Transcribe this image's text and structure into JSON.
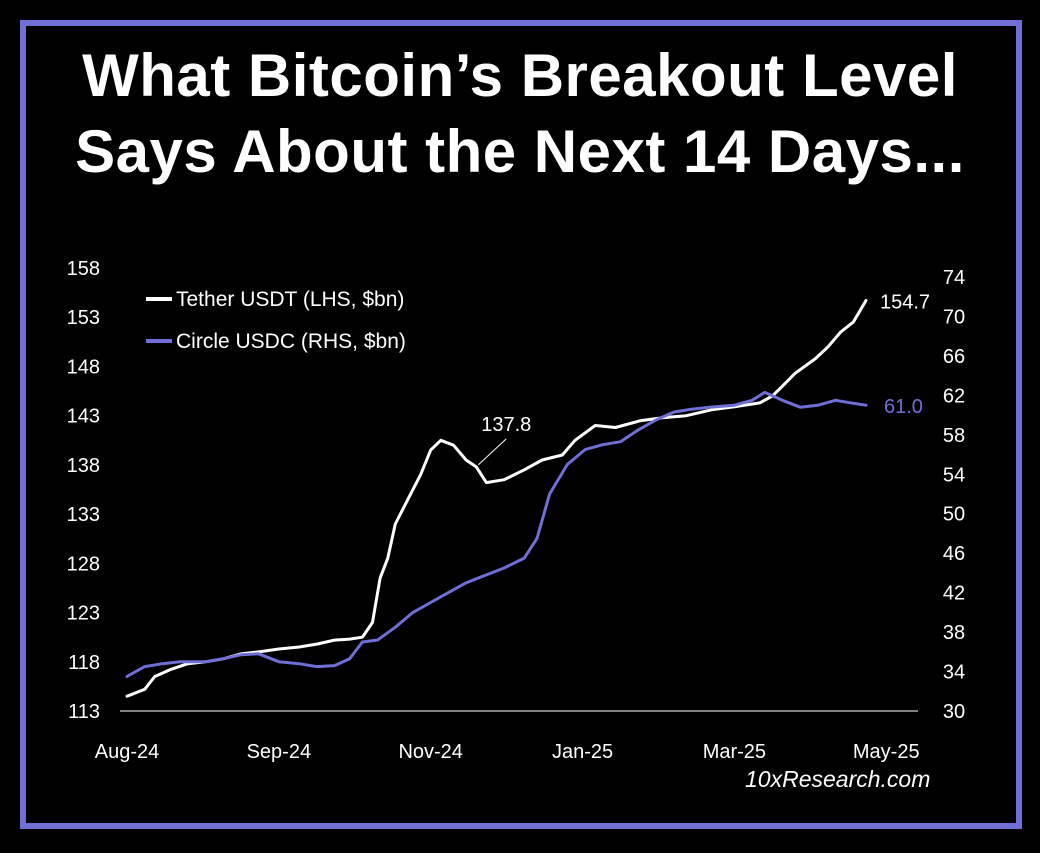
{
  "title": {
    "line1": "What Bitcoin’s Breakout Level",
    "line2": "Says About the Next 14 Days..."
  },
  "credit": "10xResearch.com",
  "colors": {
    "frame": "#6f6fd6",
    "usdt": "#ffffff",
    "usdc": "#6f6fd6",
    "background": "#000000"
  },
  "chart_data": {
    "type": "line",
    "title": "",
    "x_tick_labels": [
      "Aug-24",
      "Sep-24",
      "Nov-24",
      "Jan-25",
      "Mar-25",
      "May-25"
    ],
    "x_tick_dates": [
      "2024-08-01",
      "2024-09-30",
      "2024-11-29",
      "2025-01-28",
      "2025-03-29",
      "2025-05-28"
    ],
    "x_range": [
      "2024-08-01",
      "2025-05-20"
    ],
    "y_left": {
      "label": "",
      "range": [
        113,
        158
      ],
      "ticks": [
        158,
        153,
        148,
        143,
        138,
        133,
        128,
        123,
        118,
        113
      ]
    },
    "y_right": {
      "label": "",
      "range": [
        30,
        74
      ],
      "ticks": [
        74,
        70,
        66,
        62,
        58,
        54,
        50,
        46,
        42,
        38,
        34,
        30
      ]
    },
    "legend": {
      "placement": "top-left"
    },
    "grid": false,
    "series": [
      {
        "name": "Tether USDT (LHS, $bn)",
        "axis": "left",
        "color": "#ffffff",
        "end_label": "154.7",
        "points": [
          [
            "2024-08-01",
            114.5
          ],
          [
            "2024-08-08",
            115.2
          ],
          [
            "2024-08-12",
            116.5
          ],
          [
            "2024-08-18",
            117.2
          ],
          [
            "2024-08-25",
            117.8
          ],
          [
            "2024-09-01",
            118.0
          ],
          [
            "2024-09-08",
            118.3
          ],
          [
            "2024-09-15",
            118.8
          ],
          [
            "2024-09-22",
            119.0
          ],
          [
            "2024-09-30",
            119.3
          ],
          [
            "2024-10-08",
            119.5
          ],
          [
            "2024-10-15",
            119.8
          ],
          [
            "2024-10-22",
            120.2
          ],
          [
            "2024-10-28",
            120.3
          ],
          [
            "2024-11-02",
            120.5
          ],
          [
            "2024-11-06",
            122.0
          ],
          [
            "2024-11-09",
            126.5
          ],
          [
            "2024-11-12",
            128.5
          ],
          [
            "2024-11-15",
            132.0
          ],
          [
            "2024-11-20",
            134.5
          ],
          [
            "2024-11-25",
            137.0
          ],
          [
            "2024-11-29",
            139.5
          ],
          [
            "2024-12-03",
            140.5
          ],
          [
            "2024-12-08",
            140.0
          ],
          [
            "2024-12-13",
            138.5
          ],
          [
            "2024-12-17",
            137.8
          ],
          [
            "2024-12-21",
            136.2
          ],
          [
            "2024-12-28",
            136.5
          ],
          [
            "2025-01-05",
            137.5
          ],
          [
            "2025-01-12",
            138.5
          ],
          [
            "2025-01-20",
            139.0
          ],
          [
            "2025-01-25",
            140.5
          ],
          [
            "2025-02-02",
            142.0
          ],
          [
            "2025-02-10",
            141.8
          ],
          [
            "2025-02-20",
            142.5
          ],
          [
            "2025-03-01",
            142.8
          ],
          [
            "2025-03-10",
            143.0
          ],
          [
            "2025-03-20",
            143.6
          ],
          [
            "2025-03-29",
            143.9
          ],
          [
            "2025-04-08",
            144.3
          ],
          [
            "2025-04-13",
            145.0
          ],
          [
            "2025-04-17",
            146.0
          ],
          [
            "2025-04-22",
            147.3
          ],
          [
            "2025-04-30",
            148.8
          ],
          [
            "2025-05-05",
            150.0
          ],
          [
            "2025-05-10",
            151.5
          ],
          [
            "2025-05-15",
            152.5
          ],
          [
            "2025-05-20",
            154.7
          ]
        ]
      },
      {
        "name": "Circle USDC (RHS, $bn)",
        "axis": "right",
        "color": "#6f6fd6",
        "end_label": "61.0",
        "points": [
          [
            "2024-08-01",
            33.5
          ],
          [
            "2024-08-08",
            34.5
          ],
          [
            "2024-08-15",
            34.8
          ],
          [
            "2024-08-22",
            35.0
          ],
          [
            "2024-09-01",
            35.0
          ],
          [
            "2024-09-08",
            35.3
          ],
          [
            "2024-09-15",
            35.7
          ],
          [
            "2024-09-22",
            35.8
          ],
          [
            "2024-09-30",
            35.0
          ],
          [
            "2024-10-08",
            34.8
          ],
          [
            "2024-10-15",
            34.5
          ],
          [
            "2024-10-22",
            34.6
          ],
          [
            "2024-10-28",
            35.3
          ],
          [
            "2024-11-02",
            37.0
          ],
          [
            "2024-11-08",
            37.2
          ],
          [
            "2024-11-15",
            38.5
          ],
          [
            "2024-11-22",
            40.0
          ],
          [
            "2024-11-29",
            41.0
          ],
          [
            "2024-12-06",
            42.0
          ],
          [
            "2024-12-13",
            43.0
          ],
          [
            "2024-12-20",
            43.7
          ],
          [
            "2024-12-28",
            44.5
          ],
          [
            "2025-01-05",
            45.5
          ],
          [
            "2025-01-10",
            47.5
          ],
          [
            "2025-01-15",
            52.0
          ],
          [
            "2025-01-22",
            55.0
          ],
          [
            "2025-01-29",
            56.5
          ],
          [
            "2025-02-05",
            57.0
          ],
          [
            "2025-02-12",
            57.3
          ],
          [
            "2025-02-19",
            58.5
          ],
          [
            "2025-02-26",
            59.5
          ],
          [
            "2025-03-05",
            60.3
          ],
          [
            "2025-03-12",
            60.6
          ],
          [
            "2025-03-19",
            60.8
          ],
          [
            "2025-03-29",
            61.0
          ],
          [
            "2025-04-05",
            61.5
          ],
          [
            "2025-04-10",
            62.3
          ],
          [
            "2025-04-17",
            61.5
          ],
          [
            "2025-04-24",
            60.8
          ],
          [
            "2025-05-01",
            61.0
          ],
          [
            "2025-05-08",
            61.5
          ],
          [
            "2025-05-15",
            61.2
          ],
          [
            "2025-05-20",
            61.0
          ]
        ]
      }
    ],
    "annotations": [
      {
        "text": "137.8",
        "x": "2024-12-17",
        "y": 137.8,
        "axis": "left"
      }
    ]
  }
}
